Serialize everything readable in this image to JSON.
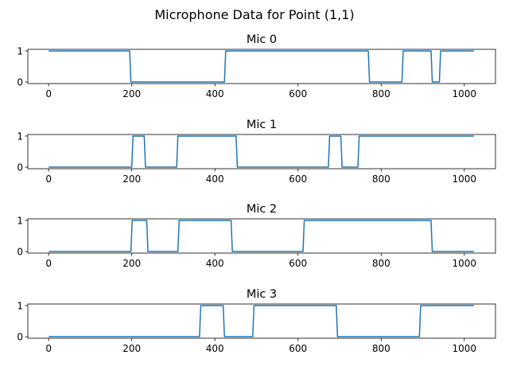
{
  "figure": {
    "title": "Microphone Data for Point (1,1)"
  },
  "chart_data": [
    {
      "type": "line",
      "title": "Mic 0",
      "xlim": [
        -50,
        1075
      ],
      "ylim": [
        -0.05,
        1.05
      ],
      "xticks": [
        0,
        200,
        400,
        600,
        800,
        1000
      ],
      "yticks": [
        0,
        1
      ],
      "color": "#1f77b4",
      "series": [
        {
          "x": [
            0,
            195,
            198,
            423,
            426,
            769,
            772,
            850,
            853,
            920,
            923,
            940,
            943,
            1023
          ],
          "values": [
            1,
            1,
            0,
            0,
            1,
            1,
            0,
            0,
            1,
            1,
            0,
            0,
            1,
            1
          ]
        }
      ]
    },
    {
      "type": "line",
      "title": "Mic 1",
      "xlim": [
        -50,
        1075
      ],
      "ylim": [
        -0.05,
        1.05
      ],
      "xticks": [
        0,
        200,
        400,
        600,
        800,
        1000
      ],
      "yticks": [
        0,
        1
      ],
      "color": "#1f77b4",
      "series": [
        {
          "x": [
            0,
            200,
            203,
            230,
            233,
            308,
            311,
            451,
            454,
            673,
            676,
            703,
            706,
            744,
            747,
            1023
          ],
          "values": [
            0,
            0,
            1,
            1,
            0,
            0,
            1,
            1,
            0,
            0,
            1,
            1,
            0,
            0,
            1,
            1
          ]
        }
      ]
    },
    {
      "type": "line",
      "title": "Mic 2",
      "xlim": [
        -50,
        1075
      ],
      "ylim": [
        -0.05,
        1.05
      ],
      "xticks": [
        0,
        200,
        400,
        600,
        800,
        1000
      ],
      "yticks": [
        0,
        1
      ],
      "color": "#1f77b4",
      "series": [
        {
          "x": [
            0,
            198,
            201,
            236,
            239,
            311,
            314,
            439,
            442,
            612,
            615,
            920,
            923,
            1023
          ],
          "values": [
            0,
            0,
            1,
            1,
            0,
            0,
            1,
            1,
            0,
            0,
            1,
            1,
            0,
            0
          ]
        }
      ]
    },
    {
      "type": "line",
      "title": "Mic 3",
      "xlim": [
        -50,
        1075
      ],
      "ylim": [
        -0.05,
        1.05
      ],
      "xticks": [
        0,
        200,
        400,
        600,
        800,
        1000
      ],
      "yticks": [
        0,
        1
      ],
      "color": "#1f77b4",
      "series": [
        {
          "x": [
            0,
            363,
            366,
            420,
            423,
            491,
            494,
            692,
            695,
            892,
            895,
            1023
          ],
          "values": [
            0,
            0,
            1,
            1,
            0,
            0,
            1,
            1,
            0,
            0,
            1,
            1
          ]
        }
      ]
    }
  ]
}
